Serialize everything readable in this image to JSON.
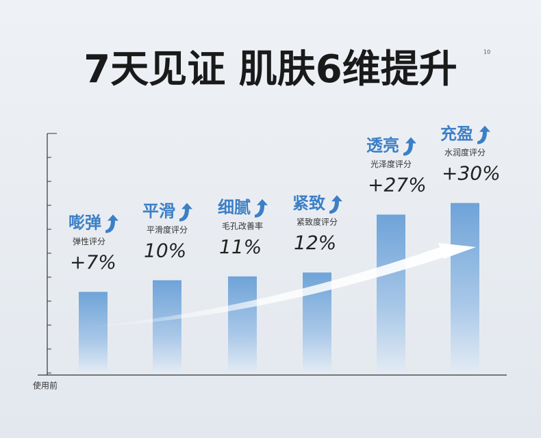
{
  "chart_data": {
    "type": "bar",
    "title": "7天见证 肌肤6维提升",
    "note": "10",
    "x_axis_label": "使用前",
    "categories": [
      "嘭弹",
      "平滑",
      "细腻",
      "紧致",
      "透亮",
      "充盈"
    ],
    "subtitles": [
      "弹性评分",
      "平滑度评分",
      "毛孔改善率",
      "紧致度评分",
      "光泽度评分",
      "水润度评分"
    ],
    "values": [
      7,
      10,
      11,
      12,
      27,
      30
    ],
    "value_labels": [
      "+7%",
      "10%",
      "11%",
      "12%",
      "+27%",
      "+30%"
    ],
    "color": "#6fa3d8",
    "label_color": "#3c7fc6",
    "ylim": [
      -14,
      48
    ]
  }
}
